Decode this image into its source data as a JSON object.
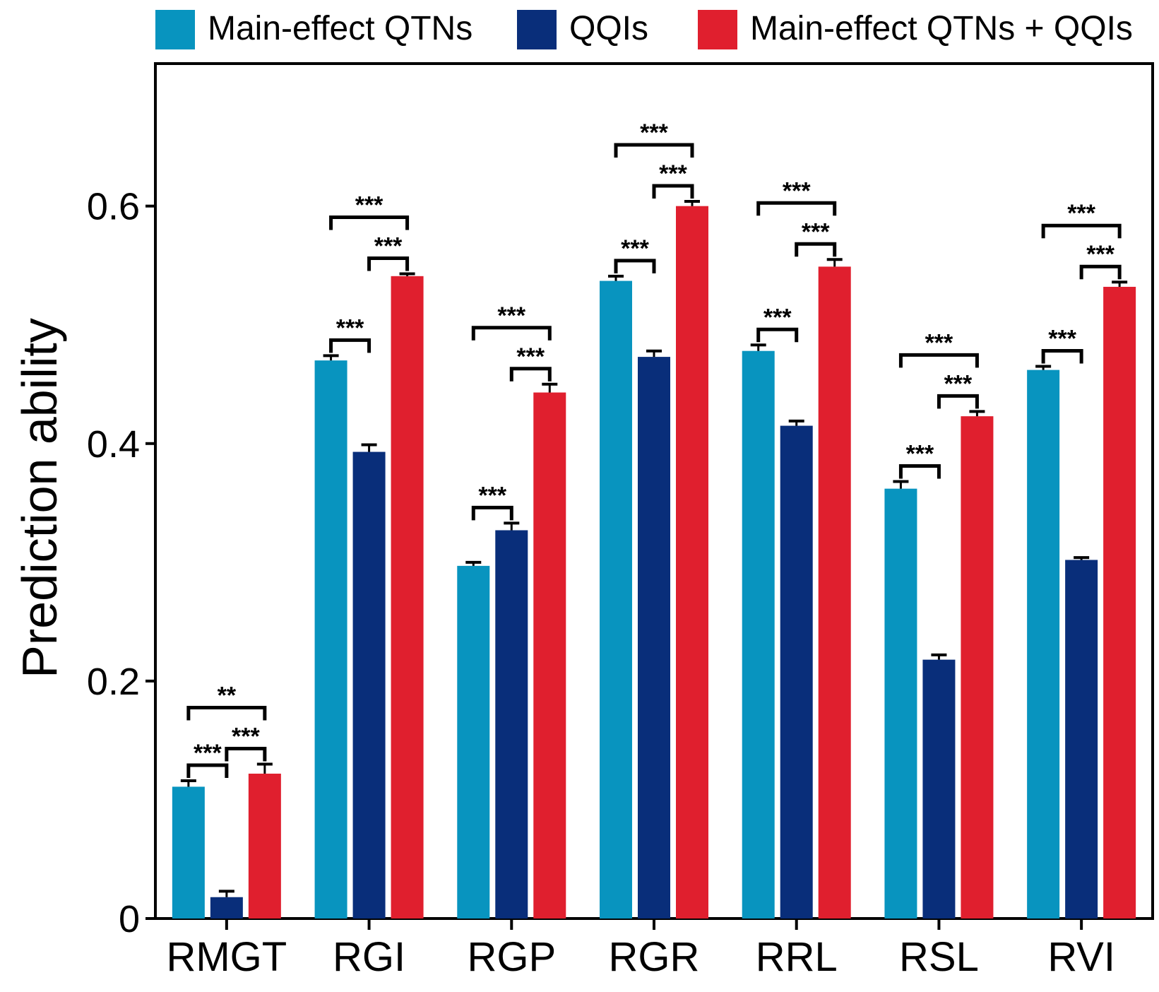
{
  "chart_data": {
    "type": "bar",
    "title": "",
    "xlabel": "",
    "ylabel": "Prediction ability",
    "ylim": [
      0,
      0.72
    ],
    "yticks": [
      0,
      0.2,
      0.4,
      0.6
    ],
    "ytick_labels": [
      "0",
      "0.2",
      "0.4",
      "0.6"
    ],
    "categories": [
      "RMGT",
      "RGI",
      "RGP",
      "RGR",
      "RRL",
      "RSL",
      "RVI"
    ],
    "series": [
      {
        "name": "Main-effect QTNs",
        "color": "#0894bf",
        "values": [
          0.111,
          0.47,
          0.297,
          0.537,
          0.478,
          0.362,
          0.462
        ],
        "errors": [
          0.005,
          0.004,
          0.003,
          0.004,
          0.005,
          0.006,
          0.003
        ]
      },
      {
        "name": "QQIs",
        "color": "#092e7a",
        "values": [
          0.018,
          0.393,
          0.327,
          0.473,
          0.415,
          0.218,
          0.302
        ],
        "errors": [
          0.005,
          0.006,
          0.006,
          0.005,
          0.004,
          0.004,
          0.002
        ]
      },
      {
        "name": "Main-effect QTNs + QQIs",
        "color": "#e01f2e",
        "values": [
          0.122,
          0.541,
          0.443,
          0.6,
          0.549,
          0.423,
          0.532
        ],
        "errors": [
          0.008,
          0.002,
          0.007,
          0.004,
          0.006,
          0.004,
          0.004
        ]
      }
    ],
    "significance": [
      {
        "category": "RMGT",
        "pairs": [
          {
            "between": [
              0,
              1
            ],
            "label": "***",
            "level": 0
          },
          {
            "between": [
              1,
              2
            ],
            "label": "***",
            "level": 1
          },
          {
            "between": [
              0,
              2
            ],
            "label": "**",
            "level": 2
          }
        ]
      },
      {
        "category": "RGI",
        "pairs": [
          {
            "between": [
              0,
              1
            ],
            "label": "***",
            "level": 0
          },
          {
            "between": [
              1,
              2
            ],
            "label": "***",
            "level": 1
          },
          {
            "between": [
              0,
              2
            ],
            "label": "***",
            "level": 2
          }
        ]
      },
      {
        "category": "RGP",
        "pairs": [
          {
            "between": [
              0,
              1
            ],
            "label": "***",
            "level": 0
          },
          {
            "between": [
              1,
              2
            ],
            "label": "***",
            "level": 1
          },
          {
            "between": [
              0,
              2
            ],
            "label": "***",
            "level": 2
          }
        ]
      },
      {
        "category": "RGR",
        "pairs": [
          {
            "between": [
              0,
              1
            ],
            "label": "***",
            "level": 0
          },
          {
            "between": [
              1,
              2
            ],
            "label": "***",
            "level": 1
          },
          {
            "between": [
              0,
              2
            ],
            "label": "***",
            "level": 2
          }
        ]
      },
      {
        "category": "RRL",
        "pairs": [
          {
            "between": [
              0,
              1
            ],
            "label": "***",
            "level": 0
          },
          {
            "between": [
              1,
              2
            ],
            "label": "***",
            "level": 1
          },
          {
            "between": [
              0,
              2
            ],
            "label": "***",
            "level": 2
          }
        ]
      },
      {
        "category": "RSL",
        "pairs": [
          {
            "between": [
              0,
              1
            ],
            "label": "***",
            "level": 0
          },
          {
            "between": [
              1,
              2
            ],
            "label": "***",
            "level": 1
          },
          {
            "between": [
              0,
              2
            ],
            "label": "***",
            "level": 2
          }
        ]
      },
      {
        "category": "RVI",
        "pairs": [
          {
            "between": [
              0,
              1
            ],
            "label": "***",
            "level": 0
          },
          {
            "between": [
              1,
              2
            ],
            "label": "***",
            "level": 1
          },
          {
            "between": [
              0,
              2
            ],
            "label": "***",
            "level": 2
          }
        ]
      }
    ],
    "legend_position": "top"
  }
}
